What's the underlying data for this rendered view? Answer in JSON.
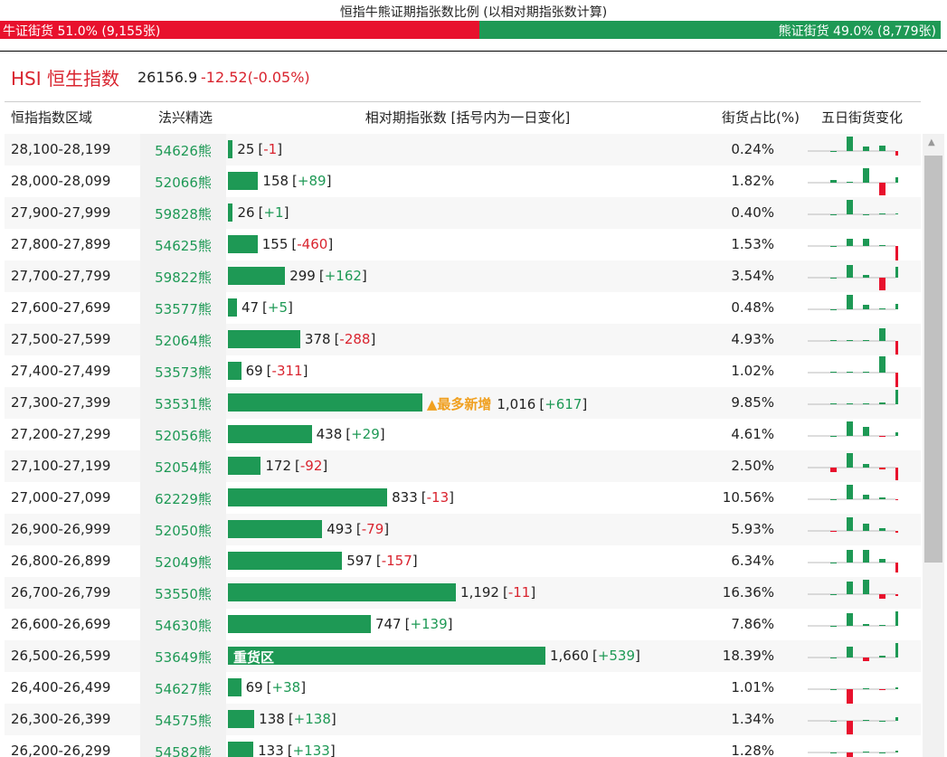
{
  "header": {
    "title": "恒指牛熊证期指张数比例 (以相对期指张数计算)",
    "bull": {
      "label": "牛证街货 51.0% (9,155张)",
      "share": 51.0
    },
    "bear": {
      "label": "熊证街货 49.0% (8,779张)",
      "share": 49.0
    }
  },
  "index": {
    "name": "HSI 恒生指数",
    "price": "26156.9",
    "change": "-12.52(-0.05%)"
  },
  "table": {
    "columns": [
      "恒指指数区域",
      "法兴精选",
      "相对期指张数 [括号内为一日变化]",
      "街货占比(%)",
      "五日街货变化"
    ],
    "rows": [
      {
        "range": "28,100-28,199",
        "pick": "54626熊",
        "count": 25,
        "change": "-1",
        "share": "0.24%",
        "five_day": [
          0,
          16,
          5,
          6,
          -5
        ]
      },
      {
        "range": "28,000-28,099",
        "pick": "52066熊",
        "count": 158,
        "change": "+89",
        "share": "1.82%",
        "five_day": [
          3,
          1,
          16,
          -14,
          6
        ]
      },
      {
        "range": "27,900-27,999",
        "pick": "59828熊",
        "count": 26,
        "change": "+1",
        "share": "0.40%",
        "five_day": [
          0,
          16,
          0,
          1,
          1
        ]
      },
      {
        "range": "27,800-27,899",
        "pick": "54625熊",
        "count": 155,
        "change": "-460",
        "share": "1.53%",
        "five_day": [
          0,
          8,
          8,
          1,
          -18
        ]
      },
      {
        "range": "27,700-27,799",
        "pick": "59822熊",
        "count": 299,
        "change": "+162",
        "share": "3.54%",
        "five_day": [
          0,
          14,
          3,
          -14,
          12
        ]
      },
      {
        "range": "27,600-27,699",
        "pick": "53577熊",
        "count": 47,
        "change": "+5",
        "share": "0.48%",
        "five_day": [
          0,
          16,
          5,
          1,
          6
        ]
      },
      {
        "range": "27,500-27,599",
        "pick": "52064熊",
        "count": 378,
        "change": "-288",
        "share": "4.93%",
        "five_day": [
          1,
          1,
          1,
          14,
          -15
        ]
      },
      {
        "range": "27,400-27,499",
        "pick": "53573熊",
        "count": 69,
        "change": "-311",
        "share": "1.02%",
        "five_day": [
          1,
          1,
          1,
          18,
          -16
        ]
      },
      {
        "range": "27,300-27,399",
        "pick": "53531熊",
        "count": 1016,
        "count_label": "1,016",
        "change": "+617",
        "share": "9.85%",
        "note": "▲最多新增",
        "five_day": [
          1,
          1,
          1,
          2,
          16
        ]
      },
      {
        "range": "27,200-27,299",
        "pick": "52056熊",
        "count": 438,
        "change": "+29",
        "share": "4.61%",
        "five_day": [
          0,
          16,
          10,
          -1,
          4
        ]
      },
      {
        "range": "27,100-27,199",
        "pick": "52054熊",
        "count": 172,
        "change": "-92",
        "share": "2.50%",
        "five_day": [
          -5,
          16,
          4,
          -2,
          -14
        ]
      },
      {
        "range": "27,000-27,099",
        "pick": "62229熊",
        "count": 833,
        "change": "-13",
        "share": "10.56%",
        "five_day": [
          0,
          16,
          5,
          2,
          -1
        ]
      },
      {
        "range": "26,900-26,999",
        "pick": "52050熊",
        "count": 493,
        "change": "-79",
        "share": "5.93%",
        "five_day": [
          -1,
          15,
          8,
          3,
          -2
        ]
      },
      {
        "range": "26,800-26,899",
        "pick": "52049熊",
        "count": 597,
        "change": "-157",
        "share": "6.34%",
        "five_day": [
          0,
          14,
          14,
          4,
          -11
        ]
      },
      {
        "range": "26,700-26,799",
        "pick": "53550熊",
        "count": 1192,
        "count_label": "1,192",
        "change": "-11",
        "share": "16.36%",
        "five_day": [
          0,
          14,
          16,
          -5,
          -2
        ]
      },
      {
        "range": "26,600-26,699",
        "pick": "54630熊",
        "count": 747,
        "change": "+139",
        "share": "7.86%",
        "five_day": [
          0,
          14,
          2,
          1,
          16
        ]
      },
      {
        "range": "26,500-26,599",
        "pick": "53649熊",
        "count": 1660,
        "count_label": "1,660",
        "change": "+539",
        "share": "18.39%",
        "inner": "重货区",
        "five_day": [
          0,
          12,
          -4,
          2,
          16
        ]
      },
      {
        "range": "26,400-26,499",
        "pick": "54627熊",
        "count": 69,
        "change": "+38",
        "share": "1.01%",
        "five_day": [
          0,
          -18,
          1,
          -1,
          2
        ]
      },
      {
        "range": "26,300-26,399",
        "pick": "54575熊",
        "count": 138,
        "change": "+138",
        "share": "1.34%",
        "five_day": [
          0,
          -15,
          1,
          0,
          4
        ]
      },
      {
        "range": "26,200-26,299",
        "pick": "54582熊",
        "count": 133,
        "change": "+133",
        "share": "1.28%",
        "five_day": [
          0,
          -12,
          1,
          0,
          2
        ]
      }
    ]
  }
}
